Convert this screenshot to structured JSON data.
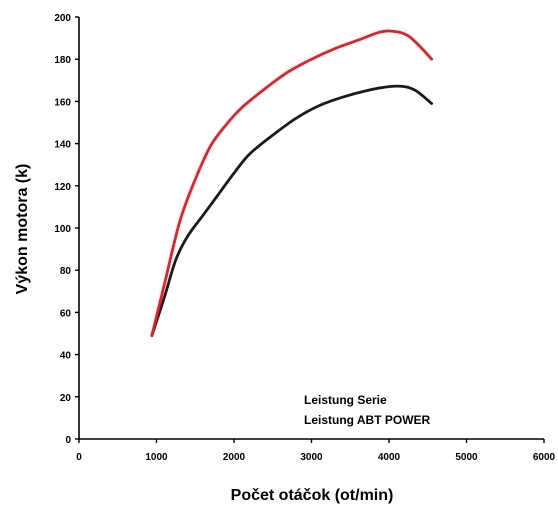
{
  "chart_data": {
    "type": "line",
    "title": "",
    "xlabel": "Počet otáčok (ot/min)",
    "ylabel": "Výkon motora (k)",
    "xlim": [
      0,
      6000
    ],
    "ylim": [
      0,
      200
    ],
    "x_ticks": [
      0,
      1000,
      2000,
      3000,
      4000,
      5000,
      6000
    ],
    "y_ticks": [
      0,
      20,
      40,
      60,
      80,
      100,
      120,
      140,
      160,
      180,
      200
    ],
    "grid": false,
    "legend_position": "bottom-right",
    "legend_entries": [
      "Leistung Serie",
      "Leistung ABT POWER"
    ],
    "series": [
      {
        "name": "Leistung Serie",
        "color": "#1a1a1a",
        "points": [
          [
            940,
            49
          ],
          [
            1100,
            67
          ],
          [
            1250,
            85
          ],
          [
            1400,
            96
          ],
          [
            1600,
            106
          ],
          [
            1800,
            116
          ],
          [
            2000,
            126
          ],
          [
            2200,
            135
          ],
          [
            2500,
            144
          ],
          [
            2800,
            152
          ],
          [
            3100,
            158
          ],
          [
            3400,
            162
          ],
          [
            3700,
            165
          ],
          [
            4000,
            167
          ],
          [
            4200,
            167
          ],
          [
            4350,
            165
          ],
          [
            4550,
            159
          ]
        ]
      },
      {
        "name": "Leistung ABT POWER",
        "color": "#ee1c25",
        "points": [
          [
            940,
            49
          ],
          [
            1100,
            73
          ],
          [
            1300,
            103
          ],
          [
            1500,
            123
          ],
          [
            1700,
            139
          ],
          [
            1900,
            149
          ],
          [
            2100,
            157
          ],
          [
            2400,
            166
          ],
          [
            2700,
            174
          ],
          [
            3000,
            180
          ],
          [
            3300,
            185
          ],
          [
            3600,
            189
          ],
          [
            3900,
            193
          ],
          [
            4100,
            193
          ],
          [
            4250,
            191
          ],
          [
            4400,
            186
          ],
          [
            4550,
            180
          ]
        ]
      }
    ]
  }
}
